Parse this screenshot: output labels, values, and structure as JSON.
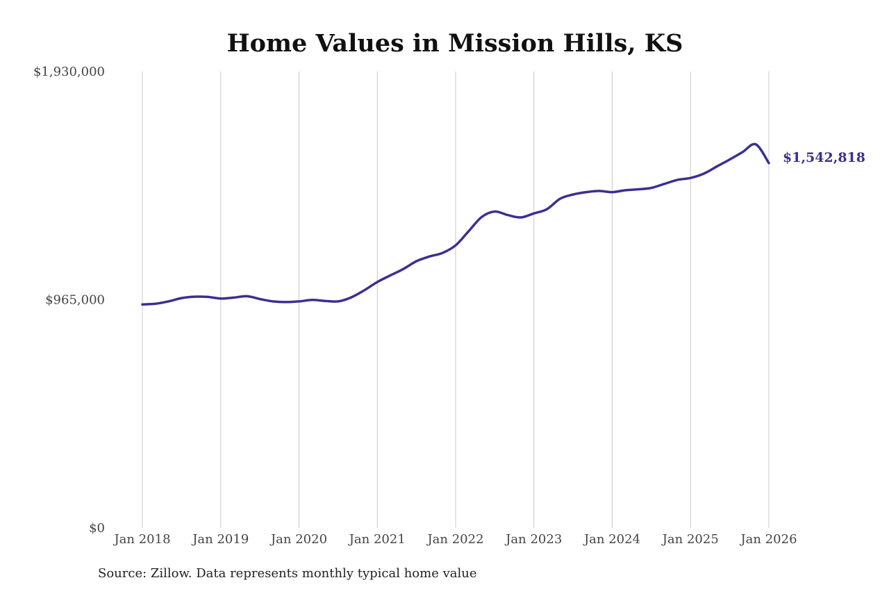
{
  "chart_data": {
    "type": "line",
    "title": "Home Values in Mission Hills, KS",
    "xlabel": "",
    "ylabel": "",
    "x_ticks": [
      "Jan 2018",
      "Jan 2019",
      "Jan 2020",
      "Jan 2021",
      "Jan 2022",
      "Jan 2023",
      "Jan 2024",
      "Jan 2025",
      "Jan 2026"
    ],
    "y_ticks": [
      {
        "value": 0,
        "label": "$0"
      },
      {
        "value": 965000,
        "label": "$965,000"
      },
      {
        "value": 1930000,
        "label": "$1,930,000"
      }
    ],
    "ylim": [
      0,
      1930000
    ],
    "xlim": [
      "2018-01",
      "2026-01"
    ],
    "grid": {
      "vertical": true,
      "horizontal": false
    },
    "legend": "none",
    "end_label": "$1,542,818",
    "series": [
      {
        "color": "#3a3090",
        "points": [
          [
            "2018-01",
            945000
          ],
          [
            "2018-03",
            948000
          ],
          [
            "2018-05",
            958000
          ],
          [
            "2018-07",
            972000
          ],
          [
            "2018-09",
            978000
          ],
          [
            "2018-11",
            977000
          ],
          [
            "2019-01",
            970000
          ],
          [
            "2019-03",
            974000
          ],
          [
            "2019-05",
            980000
          ],
          [
            "2019-07",
            968000
          ],
          [
            "2019-09",
            958000
          ],
          [
            "2019-11",
            955000
          ],
          [
            "2020-01",
            958000
          ],
          [
            "2020-03",
            964000
          ],
          [
            "2020-05",
            960000
          ],
          [
            "2020-07",
            958000
          ],
          [
            "2020-09",
            975000
          ],
          [
            "2020-11",
            1005000
          ],
          [
            "2021-01",
            1040000
          ],
          [
            "2021-03",
            1068000
          ],
          [
            "2021-05",
            1095000
          ],
          [
            "2021-07",
            1128000
          ],
          [
            "2021-09",
            1148000
          ],
          [
            "2021-11",
            1163000
          ],
          [
            "2022-01",
            1195000
          ],
          [
            "2022-03",
            1255000
          ],
          [
            "2022-05",
            1315000
          ],
          [
            "2022-07",
            1338000
          ],
          [
            "2022-09",
            1323000
          ],
          [
            "2022-11",
            1313000
          ],
          [
            "2023-01",
            1330000
          ],
          [
            "2023-03",
            1348000
          ],
          [
            "2023-05",
            1392000
          ],
          [
            "2023-07",
            1410000
          ],
          [
            "2023-09",
            1420000
          ],
          [
            "2023-11",
            1425000
          ],
          [
            "2024-01",
            1420000
          ],
          [
            "2024-03",
            1428000
          ],
          [
            "2024-05",
            1432000
          ],
          [
            "2024-07",
            1438000
          ],
          [
            "2024-09",
            1455000
          ],
          [
            "2024-11",
            1472000
          ],
          [
            "2025-01",
            1480000
          ],
          [
            "2025-03",
            1498000
          ],
          [
            "2025-05",
            1528000
          ],
          [
            "2025-07",
            1558000
          ],
          [
            "2025-09",
            1590000
          ],
          [
            "2025-11",
            1622000
          ],
          [
            "2026-01",
            1542818
          ]
        ]
      }
    ]
  },
  "source_note": "Source: Zillow. Data represents monthly typical home value"
}
